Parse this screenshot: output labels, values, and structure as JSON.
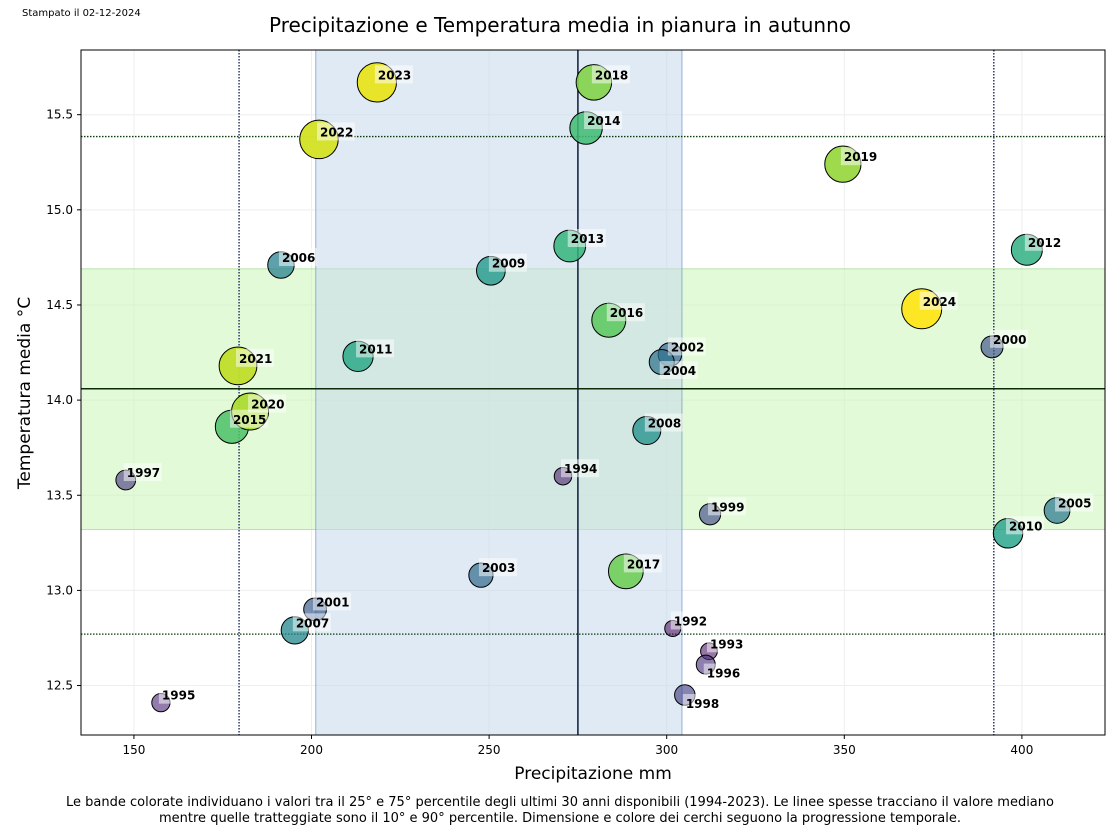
{
  "printed_date": "Stampato il 02-12-2024",
  "footnote_line1": "Le bande colorate individuano i valori tra il 25° e 75° percentile degli ultimi 30 anni disponibili (1994-2023). Le linee spesse tracciano il valore mediano",
  "footnote_line2": "mentre quelle tratteggiate sono il 10° e 90° percentile. Dimensione e colore dei cerchi seguono la progressione temporale.",
  "chart_data": {
    "type": "scatter",
    "title": "Precipitazione e Temperatura media in pianura in autunno",
    "xlabel": "Precipitazione mm",
    "ylabel": "Temperatura media °C",
    "xlim": [
      135.1,
      423.4
    ],
    "ylim": [
      12.24,
      15.84
    ],
    "xticks": [
      150,
      200,
      250,
      300,
      350,
      400
    ],
    "yticks": [
      12.5,
      13.0,
      13.5,
      14.0,
      14.5,
      15.0,
      15.5
    ],
    "grid": true,
    "colormap": "viridis",
    "x_band_p25_p75": [
      201.2,
      304.3
    ],
    "x_median": 275.0,
    "x_p10_p90": [
      179.6,
      392.1
    ],
    "y_band_p25_p75": [
      13.32,
      14.69
    ],
    "y_median": 14.06,
    "y_p10_p90": [
      12.77,
      15.385
    ],
    "x_band_color": "#c6d8ec",
    "y_band_color": "#ccf5b8",
    "points": [
      {
        "label": "1992",
        "x": 301.7,
        "y": 12.8
      },
      {
        "label": "1993",
        "x": 311.9,
        "y": 12.68
      },
      {
        "label": "1994",
        "x": 270.8,
        "y": 13.6
      },
      {
        "label": "1995",
        "x": 157.6,
        "y": 12.41
      },
      {
        "label": "1996",
        "x": 311.0,
        "y": 12.61
      },
      {
        "label": "1997",
        "x": 147.7,
        "y": 13.58
      },
      {
        "label": "1998",
        "x": 305.1,
        "y": 12.45
      },
      {
        "label": "1999",
        "x": 312.2,
        "y": 13.4
      },
      {
        "label": "2000",
        "x": 391.6,
        "y": 14.28
      },
      {
        "label": "2001",
        "x": 201.0,
        "y": 12.9
      },
      {
        "label": "2002",
        "x": 300.9,
        "y": 14.24
      },
      {
        "label": "2003",
        "x": 247.7,
        "y": 13.08
      },
      {
        "label": "2004",
        "x": 298.6,
        "y": 14.2
      },
      {
        "label": "2005",
        "x": 409.9,
        "y": 13.42
      },
      {
        "label": "2006",
        "x": 191.4,
        "y": 14.71
      },
      {
        "label": "2007",
        "x": 195.3,
        "y": 12.79
      },
      {
        "label": "2008",
        "x": 294.4,
        "y": 13.84
      },
      {
        "label": "2009",
        "x": 250.5,
        "y": 14.68
      },
      {
        "label": "2010",
        "x": 396.1,
        "y": 13.3
      },
      {
        "label": "2011",
        "x": 213.1,
        "y": 14.23
      },
      {
        "label": "2012",
        "x": 401.4,
        "y": 14.79
      },
      {
        "label": "2013",
        "x": 272.7,
        "y": 14.81
      },
      {
        "label": "2014",
        "x": 277.3,
        "y": 15.43
      },
      {
        "label": "2015",
        "x": 177.6,
        "y": 13.86
      },
      {
        "label": "2016",
        "x": 283.7,
        "y": 14.42
      },
      {
        "label": "2017",
        "x": 288.5,
        "y": 13.1
      },
      {
        "label": "2018",
        "x": 279.5,
        "y": 15.67
      },
      {
        "label": "2019",
        "x": 349.6,
        "y": 15.24
      },
      {
        "label": "2020",
        "x": 182.7,
        "y": 13.94
      },
      {
        "label": "2021",
        "x": 179.3,
        "y": 14.18
      },
      {
        "label": "2022",
        "x": 202.1,
        "y": 15.37
      },
      {
        "label": "2023",
        "x": 218.4,
        "y": 15.67
      },
      {
        "label": "2024",
        "x": 371.8,
        "y": 14.48
      }
    ]
  }
}
